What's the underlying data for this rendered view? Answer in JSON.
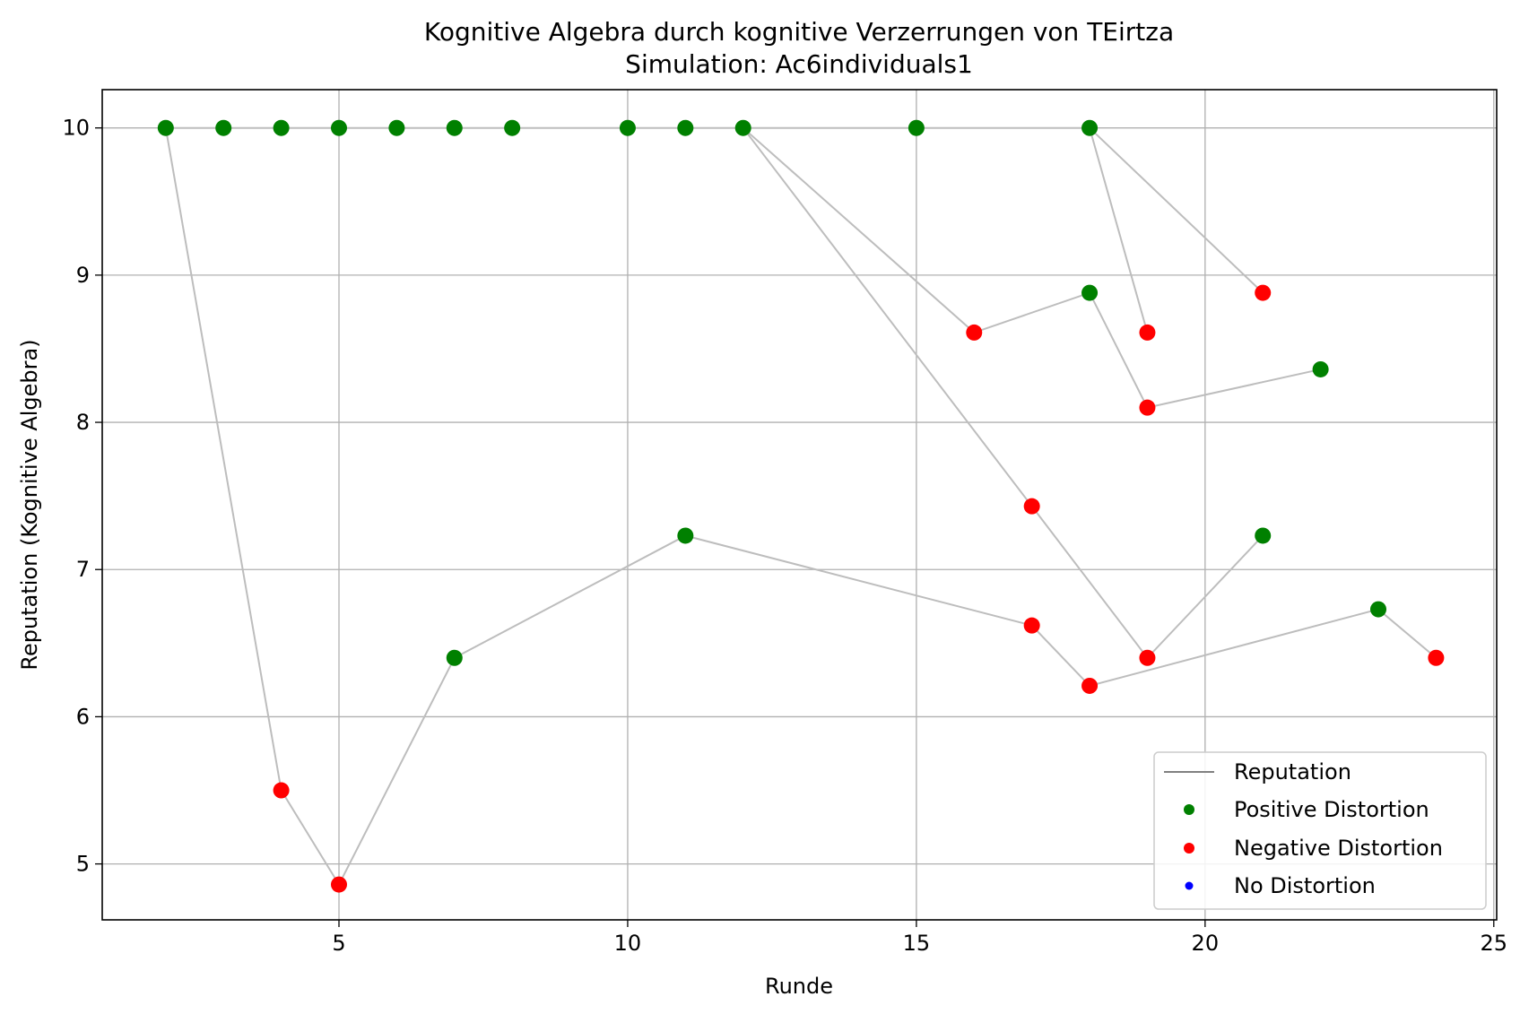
{
  "chart_data": {
    "type": "scatter",
    "title": "Kognitive Algebra durch kognitive Verzerrungen von TEirtza",
    "subtitle": "Simulation: Ac6individuals1",
    "xlabel": "Runde",
    "ylabel": "Reputation (Kognitive Algebra)",
    "xlim": [
      0.9,
      25.05
    ],
    "ylim": [
      4.62,
      10.26
    ],
    "xticks": [
      5,
      10,
      15,
      20,
      25
    ],
    "yticks": [
      5,
      6,
      7,
      8,
      9,
      10
    ],
    "grid": true,
    "legend": {
      "placement": "lower-right",
      "entries": [
        {
          "label": "Reputation",
          "kind": "line",
          "color": "#808080"
        },
        {
          "label": "Positive Distortion",
          "kind": "marker",
          "color": "#008000"
        },
        {
          "label": "Negative Distortion",
          "kind": "marker",
          "color": "#ff0000"
        },
        {
          "label": "No Distortion",
          "kind": "marker",
          "color": "#0000ff"
        }
      ]
    },
    "colors": {
      "positive": "#008000",
      "negative": "#ff0000",
      "none": "#0000ff",
      "line": "#bdbdbd"
    },
    "paths": [
      [
        [
          2,
          10.0
        ],
        [
          4,
          5.5
        ],
        [
          5,
          4.86
        ],
        [
          7,
          6.4
        ],
        [
          11,
          7.23
        ],
        [
          17,
          6.62
        ],
        [
          18,
          6.21
        ],
        [
          23,
          6.73
        ],
        [
          24,
          6.4
        ]
      ],
      [
        [
          2,
          10.0
        ],
        [
          12,
          10.0
        ],
        [
          17,
          7.43
        ],
        [
          19,
          6.4
        ],
        [
          21,
          7.23
        ]
      ],
      [
        [
          12,
          10.0
        ],
        [
          16,
          8.61
        ],
        [
          18,
          8.88
        ],
        [
          19,
          8.1
        ],
        [
          22,
          8.36
        ]
      ],
      [
        [
          12,
          10.0
        ],
        [
          18,
          10.0
        ],
        [
          19,
          8.61
        ]
      ],
      [
        [
          18,
          10.0
        ],
        [
          21,
          8.88
        ]
      ]
    ],
    "points": [
      {
        "x": 2,
        "y": 10.0,
        "d": "positive"
      },
      {
        "x": 3,
        "y": 10.0,
        "d": "positive"
      },
      {
        "x": 4,
        "y": 10.0,
        "d": "positive"
      },
      {
        "x": 5,
        "y": 10.0,
        "d": "positive"
      },
      {
        "x": 6,
        "y": 10.0,
        "d": "positive"
      },
      {
        "x": 7,
        "y": 10.0,
        "d": "positive"
      },
      {
        "x": 8,
        "y": 10.0,
        "d": "positive"
      },
      {
        "x": 10,
        "y": 10.0,
        "d": "positive"
      },
      {
        "x": 11,
        "y": 10.0,
        "d": "positive"
      },
      {
        "x": 12,
        "y": 10.0,
        "d": "positive"
      },
      {
        "x": 15,
        "y": 10.0,
        "d": "positive"
      },
      {
        "x": 18,
        "y": 10.0,
        "d": "positive"
      },
      {
        "x": 4,
        "y": 5.5,
        "d": "negative"
      },
      {
        "x": 5,
        "y": 4.86,
        "d": "negative"
      },
      {
        "x": 7,
        "y": 6.4,
        "d": "positive"
      },
      {
        "x": 11,
        "y": 7.23,
        "d": "positive"
      },
      {
        "x": 16,
        "y": 8.61,
        "d": "negative"
      },
      {
        "x": 17,
        "y": 7.43,
        "d": "negative"
      },
      {
        "x": 17,
        "y": 6.62,
        "d": "negative"
      },
      {
        "x": 18,
        "y": 8.88,
        "d": "positive"
      },
      {
        "x": 18,
        "y": 6.21,
        "d": "negative"
      },
      {
        "x": 19,
        "y": 8.61,
        "d": "negative"
      },
      {
        "x": 19,
        "y": 8.1,
        "d": "negative"
      },
      {
        "x": 19,
        "y": 6.4,
        "d": "negative"
      },
      {
        "x": 21,
        "y": 8.88,
        "d": "negative"
      },
      {
        "x": 21,
        "y": 7.23,
        "d": "positive"
      },
      {
        "x": 22,
        "y": 8.36,
        "d": "positive"
      },
      {
        "x": 23,
        "y": 6.73,
        "d": "positive"
      },
      {
        "x": 24,
        "y": 6.4,
        "d": "negative"
      }
    ]
  }
}
